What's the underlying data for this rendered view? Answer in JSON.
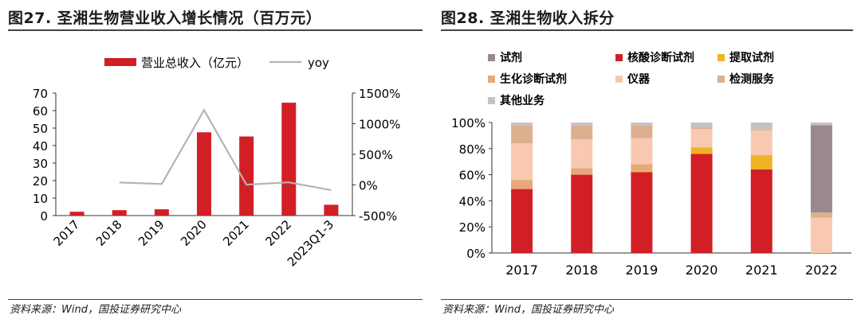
{
  "left": {
    "title": "图27. 圣湘生物营业收入增长情况（百万元）",
    "source": "资料来源：Wind，国投证券研究中心"
  },
  "right": {
    "title": "图28. 圣湘生物收入拆分",
    "source": "资料来源：Wind，国投证券研究中心"
  },
  "chart_data": [
    {
      "type": "bar",
      "title": "图27. 圣湘生物营业收入增长情况（百万元）",
      "categories": [
        "2017",
        "2018",
        "2019",
        "2020",
        "2021",
        "2022",
        "2023Q1-3"
      ],
      "series": [
        {
          "name": "营业总收入（亿元）",
          "axis": "left",
          "values": [
            2.2,
            3.1,
            3.6,
            47.6,
            45.2,
            64.5,
            6.2
          ]
        },
        {
          "name": "yoy",
          "axis": "right",
          "type": "line",
          "values": [
            null,
            40,
            16,
            1223,
            5,
            43,
            -85
          ]
        }
      ],
      "ylim_left": [
        0,
        70
      ],
      "ylim_right": [
        -500,
        1500
      ],
      "yticks_left": [
        "0",
        "10",
        "20",
        "30",
        "40",
        "50",
        "60",
        "70"
      ],
      "yticks_right": [
        "-500%",
        "0%",
        "500%",
        "1000%",
        "1500%"
      ],
      "colors": {
        "bar": "#d21f26",
        "line": "#b4b4b4"
      },
      "legend": "top"
    },
    {
      "type": "bar",
      "stacked": true,
      "title": "图28. 圣湘生物收入拆分",
      "categories": [
        "2017",
        "2018",
        "2019",
        "2020",
        "2021",
        "2022"
      ],
      "series": [
        {
          "name": "核酸诊断试剂",
          "color": "#d21f26",
          "values": [
            49,
            60,
            62,
            76,
            64,
            0
          ]
        },
        {
          "name": "提取试剂",
          "color": "#f0b323",
          "values": [
            0,
            0,
            1,
            5,
            11,
            0
          ]
        },
        {
          "name": "生化诊断试剂",
          "color": "#e6a87a",
          "values": [
            7,
            5,
            5,
            0,
            0,
            0
          ]
        },
        {
          "name": "仪器",
          "color": "#f8c9b0",
          "values": [
            28,
            22,
            20,
            14,
            19,
            27
          ]
        },
        {
          "name": "检测服务",
          "color": "#dbb08e",
          "values": [
            14,
            11,
            10,
            1,
            1,
            4
          ]
        },
        {
          "name": "试剂",
          "color": "#9a8890",
          "values": [
            0,
            0,
            0,
            0,
            0,
            67
          ]
        },
        {
          "name": "其他业务",
          "color": "#c8c0c8",
          "values": [
            2,
            2,
            2,
            4,
            5,
            2
          ]
        }
      ],
      "legend_order": [
        "试剂",
        "核酸诊断试剂",
        "提取试剂",
        "生化诊断试剂",
        "仪器",
        "检测服务",
        "其他业务"
      ],
      "ylim": [
        0,
        100
      ],
      "yticks": [
        "0%",
        "20%",
        "40%",
        "60%",
        "80%",
        "100%"
      ],
      "legend": "top"
    }
  ]
}
